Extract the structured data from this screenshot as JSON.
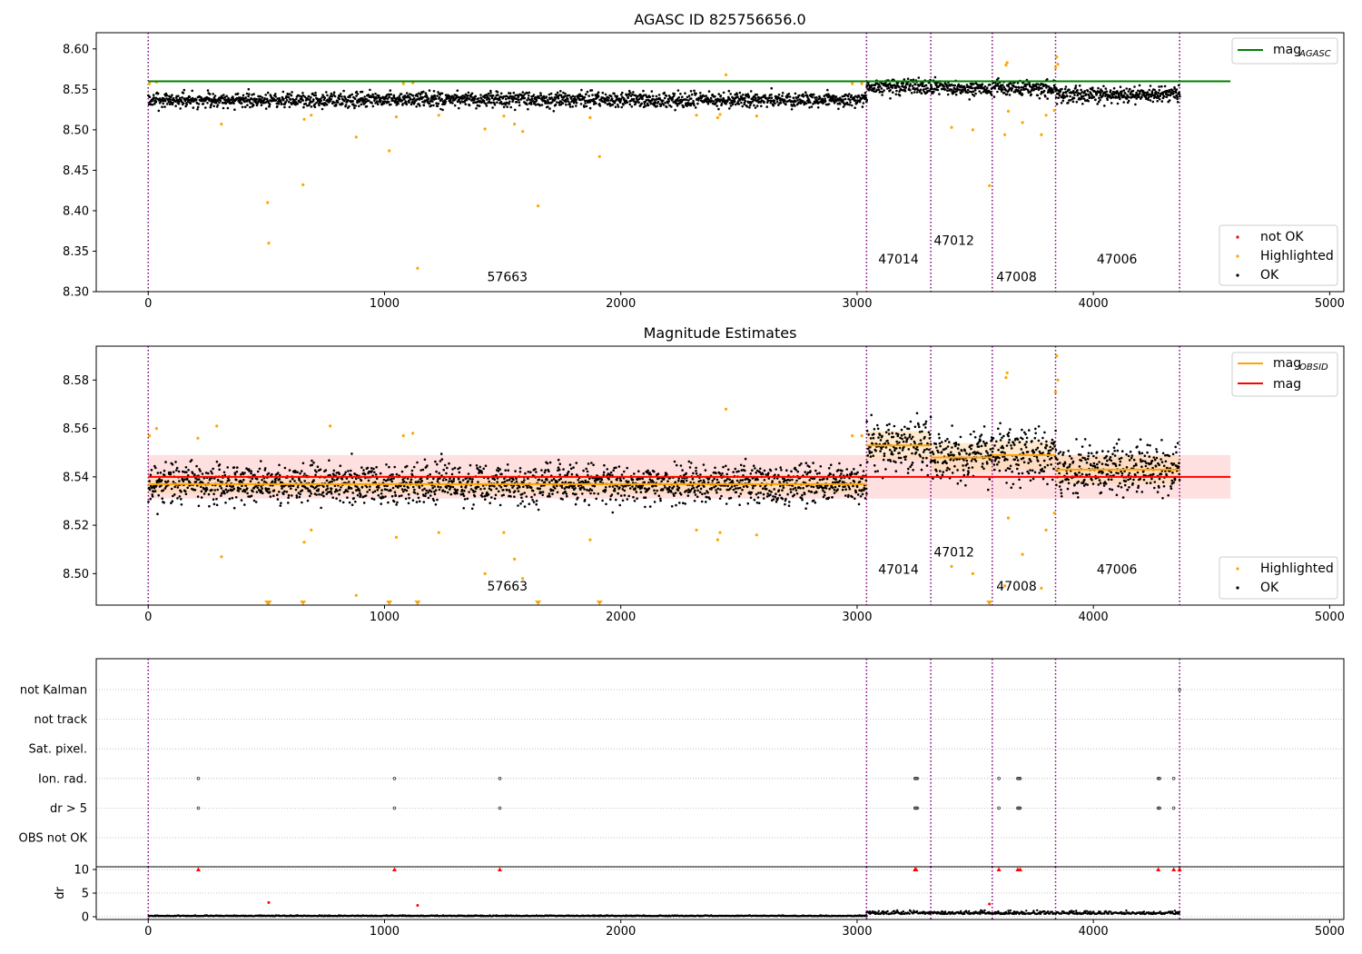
{
  "chart_data": [
    {
      "type": "scatter",
      "title": "AGASC ID 825756656.0",
      "xlim": [
        -220,
        5060
      ],
      "ylim": [
        8.3,
        8.62
      ],
      "x_ticks": [
        0,
        1000,
        2000,
        3000,
        4000,
        5000
      ],
      "y_ticks": [
        8.3,
        8.35,
        8.4,
        8.45,
        8.5,
        8.55,
        8.6
      ],
      "grid": false,
      "hline": {
        "name": "mag_AGASC",
        "y": 8.56,
        "x_range": [
          0,
          4580
        ],
        "color": "#008000"
      },
      "obsid_boundaries": [
        0,
        3040,
        3312,
        3572,
        3840,
        4365
      ],
      "obsid_labels": [
        {
          "text": "57663",
          "x": 1520,
          "y": 8.313
        },
        {
          "text": "47014",
          "x": 3175,
          "y": 8.335
        },
        {
          "text": "47012",
          "x": 3410,
          "y": 8.358
        },
        {
          "text": "47008",
          "x": 3675,
          "y": 8.313
        },
        {
          "text": "47006",
          "x": 4100,
          "y": 8.335
        }
      ],
      "ok_segments": [
        {
          "x0": 0,
          "x1": 3040,
          "center": 8.537,
          "spread": 0.008
        },
        {
          "x0": 3040,
          "x1": 3312,
          "center": 8.553,
          "spread": 0.008
        },
        {
          "x0": 3312,
          "x1": 3572,
          "center": 8.551,
          "spread": 0.008
        },
        {
          "x0": 3572,
          "x1": 3840,
          "center": 8.552,
          "spread": 0.008
        },
        {
          "x0": 3840,
          "x1": 4365,
          "center": 8.543,
          "spread": 0.008
        }
      ],
      "highlighted_points": [
        [
          5,
          8.557
        ],
        [
          35,
          8.559
        ],
        [
          310,
          8.507
        ],
        [
          505,
          8.41
        ],
        [
          510,
          8.36
        ],
        [
          655,
          8.432
        ],
        [
          660,
          8.513
        ],
        [
          690,
          8.518
        ],
        [
          880,
          8.491
        ],
        [
          1020,
          8.474
        ],
        [
          1050,
          8.516
        ],
        [
          1080,
          8.557
        ],
        [
          1120,
          8.558
        ],
        [
          1140,
          8.329
        ],
        [
          1230,
          8.518
        ],
        [
          1425,
          8.501
        ],
        [
          1505,
          8.517
        ],
        [
          1550,
          8.507
        ],
        [
          1585,
          8.498
        ],
        [
          1650,
          8.406
        ],
        [
          1870,
          8.515
        ],
        [
          1910,
          8.467
        ],
        [
          2320,
          8.518
        ],
        [
          2410,
          8.515
        ],
        [
          2420,
          8.519
        ],
        [
          2445,
          8.568
        ],
        [
          2575,
          8.517
        ],
        [
          2980,
          8.557
        ],
        [
          3020,
          8.557
        ],
        [
          3400,
          8.503
        ],
        [
          3490,
          8.5
        ],
        [
          3560,
          8.431
        ],
        [
          3625,
          8.494
        ],
        [
          3630,
          8.58
        ],
        [
          3635,
          8.583
        ],
        [
          3640,
          8.523
        ],
        [
          3700,
          8.509
        ],
        [
          3780,
          8.494
        ],
        [
          3800,
          8.518
        ],
        [
          3835,
          8.524
        ],
        [
          3840,
          8.577
        ],
        [
          3845,
          8.59
        ],
        [
          3850,
          8.581
        ]
      ],
      "legend": {
        "position": "top-right",
        "entries": [
          "mag_AGASC"
        ]
      },
      "legend_markers": {
        "position": "lower-right",
        "entries": [
          "not OK",
          "Highlighted",
          "OK"
        ]
      }
    },
    {
      "type": "scatter",
      "title": "Magnitude Estimates",
      "xlim": [
        -220,
        5060
      ],
      "ylim": [
        8.487,
        8.594
      ],
      "x_ticks": [
        0,
        1000,
        2000,
        3000,
        4000,
        5000
      ],
      "y_ticks": [
        8.5,
        8.52,
        8.54,
        8.56,
        8.58
      ],
      "grid": false,
      "mag": {
        "name": "mag",
        "y": 8.54,
        "band": [
          8.531,
          8.549
        ],
        "x_range": [
          0,
          4580
        ],
        "color": "#ff0000"
      },
      "mag_obsid": [
        {
          "x0": 0,
          "x1": 3040,
          "y": 8.537,
          "band": [
            8.533,
            8.541
          ]
        },
        {
          "x0": 3040,
          "x1": 3312,
          "y": 8.553,
          "band": [
            8.547,
            8.559
          ]
        },
        {
          "x0": 3312,
          "x1": 3572,
          "y": 8.548,
          "band": [
            8.542,
            8.554
          ]
        },
        {
          "x0": 3572,
          "x1": 3840,
          "y": 8.549,
          "band": [
            8.543,
            8.555
          ]
        },
        {
          "x0": 3840,
          "x1": 4365,
          "y": 8.543,
          "band": [
            8.537,
            8.549
          ]
        }
      ],
      "obsid_boundaries": [
        0,
        3040,
        3312,
        3572,
        3840,
        4365
      ],
      "obsid_labels": [
        {
          "text": "57663",
          "x": 1520,
          "y": 8.493
        },
        {
          "text": "47014",
          "x": 3175,
          "y": 8.5
        },
        {
          "text": "47012",
          "x": 3410,
          "y": 8.507
        },
        {
          "text": "47008",
          "x": 3675,
          "y": 8.493
        },
        {
          "text": "47006",
          "x": 4100,
          "y": 8.5
        }
      ],
      "ok_segments": [
        {
          "x0": 0,
          "x1": 3040,
          "center": 8.537,
          "spread": 0.0068
        },
        {
          "x0": 3040,
          "x1": 3312,
          "center": 8.553,
          "spread": 0.0085
        },
        {
          "x0": 3312,
          "x1": 3572,
          "center": 8.549,
          "spread": 0.0085
        },
        {
          "x0": 3572,
          "x1": 3840,
          "center": 8.549,
          "spread": 0.0085
        },
        {
          "x0": 3840,
          "x1": 4365,
          "center": 8.543,
          "spread": 0.0085
        }
      ],
      "highlighted_points": [
        [
          5,
          8.557
        ],
        [
          35,
          8.56
        ],
        [
          210,
          8.556
        ],
        [
          290,
          8.561
        ],
        [
          310,
          8.507
        ],
        [
          660,
          8.513
        ],
        [
          690,
          8.518
        ],
        [
          770,
          8.561
        ],
        [
          880,
          8.491
        ],
        [
          1050,
          8.515
        ],
        [
          1080,
          8.557
        ],
        [
          1120,
          8.558
        ],
        [
          1230,
          8.517
        ],
        [
          1425,
          8.5
        ],
        [
          1505,
          8.517
        ],
        [
          1550,
          8.506
        ],
        [
          1585,
          8.498
        ],
        [
          1870,
          8.514
        ],
        [
          2320,
          8.518
        ],
        [
          2410,
          8.514
        ],
        [
          2420,
          8.517
        ],
        [
          2445,
          8.568
        ],
        [
          2575,
          8.516
        ],
        [
          2980,
          8.557
        ],
        [
          3020,
          8.557
        ],
        [
          3400,
          8.503
        ],
        [
          3490,
          8.5
        ],
        [
          3625,
          8.495
        ],
        [
          3630,
          8.581
        ],
        [
          3635,
          8.583
        ],
        [
          3640,
          8.523
        ],
        [
          3700,
          8.508
        ],
        [
          3780,
          8.494
        ],
        [
          3800,
          8.518
        ],
        [
          3835,
          8.525
        ],
        [
          3840,
          8.575
        ],
        [
          3845,
          8.59
        ],
        [
          3850,
          8.58
        ]
      ],
      "offscale_low_x": [
        505,
        510,
        655,
        1020,
        1140,
        1650,
        1910,
        3560
      ],
      "legend": {
        "position": "top-right",
        "entries": [
          "mag_OBSID",
          "mag"
        ]
      },
      "legend_markers": {
        "position": "lower-right",
        "entries": [
          "Highlighted",
          "OK"
        ]
      }
    },
    {
      "type": "scatter",
      "xlim": [
        -220,
        5060
      ],
      "flag_rows": [
        "not Kalman",
        "not track",
        "Sat. pixel.",
        "Ion. rad.",
        "dr > 5",
        "OBS not OK"
      ],
      "flag_points": [
        {
          "row": "Ion. rad.",
          "x": [
            212,
            1042,
            1488,
            3245,
            3250,
            3255,
            3600,
            3680,
            3685,
            3690,
            4275,
            4280,
            4340
          ]
        },
        {
          "row": "dr > 5",
          "x": [
            212,
            1042,
            1488,
            3245,
            3250,
            3255,
            3600,
            3680,
            3685,
            3690,
            4275,
            4280,
            4340
          ]
        },
        {
          "row": "not Kalman",
          "x": [
            4365
          ]
        }
      ],
      "obsid_boundaries": [
        0,
        3040,
        3312,
        3572,
        3840,
        4365
      ]
    },
    {
      "type": "scatter",
      "xlim": [
        -220,
        5060
      ],
      "ylim": [
        -0.5,
        10.5
      ],
      "ylabel": "dr",
      "x_ticks": [
        0,
        1000,
        2000,
        3000,
        4000,
        5000
      ],
      "y_ticks": [
        0,
        5,
        10
      ],
      "ok_segments": [
        {
          "x0": 0,
          "x1": 3040,
          "center": 0.15,
          "spread": 0.12
        },
        {
          "x0": 3040,
          "x1": 4365,
          "center": 0.7,
          "spread": 0.45
        }
      ],
      "dr_highlight": [
        [
          510,
          3.0
        ],
        [
          1140,
          2.4
        ],
        [
          3560,
          2.7
        ]
      ],
      "dr_clipped_x": [
        212,
        1042,
        1488,
        3245,
        3250,
        3600,
        3680,
        3690,
        4275,
        4340,
        4365
      ],
      "obsid_boundaries": [
        0,
        3040,
        3312,
        3572,
        3840,
        4365
      ]
    }
  ],
  "text": {
    "p1_title": "AGASC ID 825756656.0",
    "p2_title": "Magnitude Estimates",
    "legend_mag_agasc": "mag",
    "legend_mag_agasc_sub": "AGASC",
    "legend_not_ok": "not OK",
    "legend_highlighted": "Highlighted",
    "legend_ok": "OK",
    "legend_mag_obsid": "mag",
    "legend_mag_obsid_sub": "OBSID",
    "legend_mag": "mag",
    "dr_ylabel": "dr"
  },
  "colors": {
    "ok": "#000000",
    "highlighted": "#ffa500",
    "not_ok": "#ff0000",
    "mag_agasc": "#008000",
    "mag": "#ff0000",
    "mag_obsid": "#ffa500",
    "boundary": "#800080",
    "grid": "#b0b0b0",
    "mag_band": "#ffd6d6",
    "obsid_band": "#ffd8a8"
  }
}
